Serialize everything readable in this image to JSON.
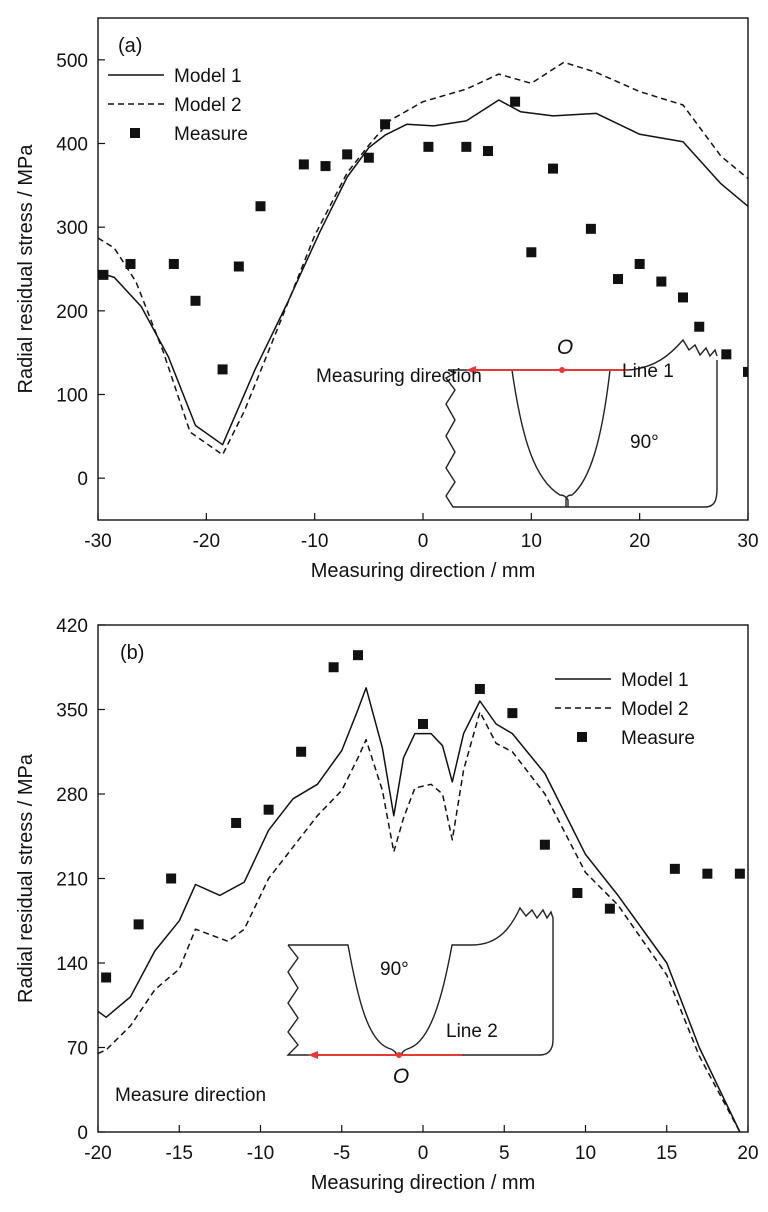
{
  "chart_data": [
    {
      "type": "line",
      "panel_label": "(a)",
      "xlabel": "Measuring direction / mm",
      "ylabel": "Radial  residual stress / MPa",
      "xlim": [
        -30,
        30
      ],
      "ylim": [
        -50,
        550
      ],
      "xticks": [
        -30,
        -20,
        -10,
        0,
        10,
        20,
        30
      ],
      "yticks": [
        0,
        100,
        200,
        300,
        400,
        500
      ],
      "grid": false,
      "legend_position": "top-left",
      "series": [
        {
          "name": "Model 1",
          "style": "solid",
          "x": [
            -30,
            -28.5,
            -26,
            -23.5,
            -21,
            -18.5,
            -15.5,
            -12.5,
            -9.5,
            -7,
            -5,
            -3.5,
            -1.5,
            1,
            4,
            7,
            9,
            12,
            16,
            20,
            24,
            27.5,
            30
          ],
          "y": [
            246,
            240,
            205,
            145,
            63,
            40,
            130,
            210,
            295,
            360,
            395,
            410,
            423,
            421,
            427,
            452,
            438,
            433,
            436,
            411,
            402,
            352,
            325
          ]
        },
        {
          "name": "Model 2",
          "style": "dashed",
          "x": [
            -30,
            -28.5,
            -26.5,
            -24,
            -21.5,
            -18.5,
            -16.5,
            -14,
            -10,
            -7,
            -5,
            -3,
            0,
            4,
            7,
            10,
            13,
            16,
            20,
            24,
            27.5,
            30
          ],
          "y": [
            287,
            275,
            235,
            152,
            55,
            28,
            80,
            160,
            290,
            365,
            398,
            428,
            450,
            465,
            483,
            472,
            497,
            485,
            462,
            446,
            385,
            358
          ]
        },
        {
          "name": "Measure",
          "style": "marker",
          "x": [
            -29.5,
            -27,
            -23,
            -21,
            -18.5,
            -17,
            -15,
            -11,
            -9,
            -7,
            -5,
            -3.5,
            0.5,
            4,
            6,
            8.5,
            10,
            12,
            15.5,
            18,
            20,
            22,
            24,
            25.5,
            28,
            30
          ],
          "y": [
            243,
            256,
            256,
            212,
            130,
            253,
            325,
            375,
            373,
            387,
            383,
            423,
            396,
            396,
            391,
            450,
            270,
            370,
            298,
            238,
            256,
            235,
            216,
            181,
            148,
            127
          ]
        }
      ],
      "annotations": {
        "direction_label": "Measuring direction",
        "origin_label": "O",
        "line_label": "Line 1",
        "angle_label": "90°"
      }
    },
    {
      "type": "line",
      "panel_label": "(b)",
      "xlabel": "Measuring direction / mm",
      "ylabel": "Radial  residual stress / MPa",
      "xlim": [
        -20,
        20
      ],
      "ylim": [
        0,
        420
      ],
      "xticks": [
        -20,
        -15,
        -10,
        -5,
        0,
        5,
        10,
        15,
        20
      ],
      "yticks": [
        0,
        70,
        140,
        210,
        280,
        350,
        420
      ],
      "grid": false,
      "legend_position": "top-right",
      "series": [
        {
          "name": "Model 1",
          "style": "solid",
          "x": [
            -20,
            -19.5,
            -18,
            -16.5,
            -15,
            -14,
            -12.5,
            -11,
            -9.5,
            -8,
            -6.5,
            -5,
            -4,
            -3.5,
            -2.5,
            -1.8,
            -1.2,
            -0.5,
            0.5,
            1.2,
            1.8,
            2.5,
            3.5,
            4.5,
            5.5,
            7.5,
            10,
            12,
            15,
            17,
            19.5
          ],
          "y": [
            100,
            95,
            112,
            150,
            175,
            205,
            196,
            207,
            250,
            276,
            288,
            316,
            350,
            368,
            318,
            262,
            310,
            330,
            330,
            320,
            290,
            330,
            357,
            338,
            330,
            297,
            230,
            196,
            140,
            70,
            0
          ]
        },
        {
          "name": "Model 2",
          "style": "dashed",
          "x": [
            -20,
            -19.5,
            -18,
            -16.5,
            -15,
            -14,
            -12,
            -11,
            -9.5,
            -8,
            -6.5,
            -5,
            -4,
            -3.5,
            -2.5,
            -1.8,
            -1.2,
            -0.5,
            0.5,
            1.2,
            1.8,
            2.5,
            3.5,
            4.5,
            5.5,
            7.5,
            10,
            12,
            15,
            17,
            19.5
          ],
          "y": [
            65,
            68,
            88,
            118,
            135,
            168,
            158,
            168,
            210,
            236,
            262,
            283,
            310,
            325,
            283,
            232,
            260,
            285,
            288,
            280,
            242,
            300,
            348,
            322,
            315,
            280,
            215,
            188,
            130,
            63,
            0
          ]
        },
        {
          "name": "Measure",
          "style": "marker",
          "x": [
            -19.5,
            -17.5,
            -15.5,
            -11.5,
            -9.5,
            -7.5,
            -5.5,
            -4,
            0,
            3.5,
            5.5,
            7.5,
            9.5,
            11.5,
            15.5,
            17.5,
            19.5
          ],
          "y": [
            128,
            172,
            210,
            256,
            267,
            315,
            385,
            395,
            338,
            367,
            347,
            238,
            198,
            185,
            218,
            214,
            214
          ]
        }
      ],
      "annotations": {
        "direction_label": "Measure direction",
        "origin_label": "O",
        "line_label": "Line 2",
        "angle_label": "90°"
      }
    }
  ]
}
